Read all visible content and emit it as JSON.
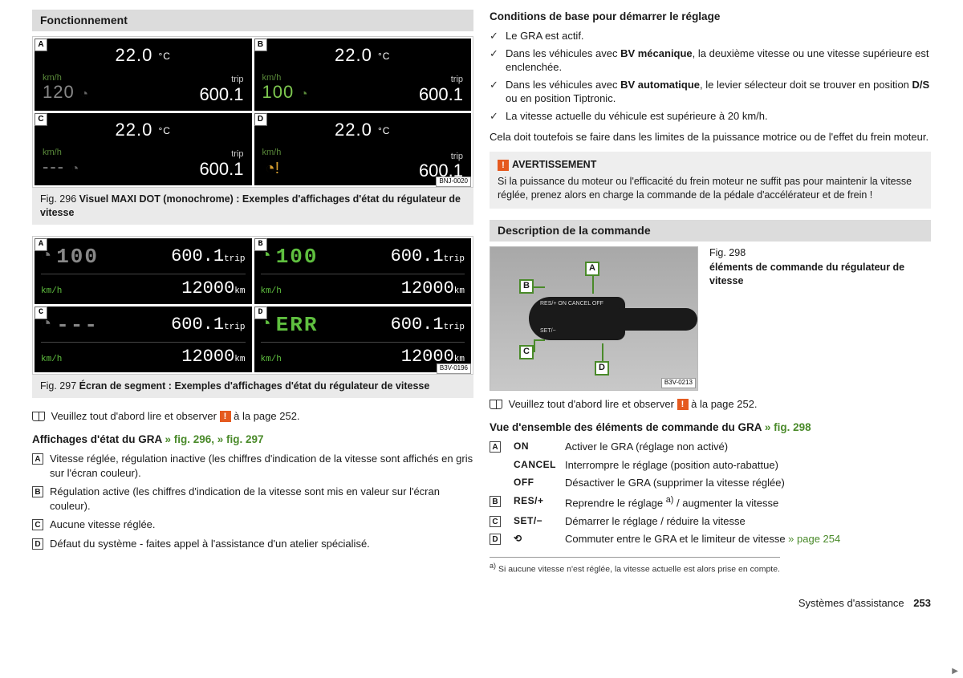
{
  "colors": {
    "green": "#4a8a2a",
    "lcdGreen": "#7ec850",
    "warnOrange": "#e55a1f",
    "panelGrey": "#dcdcdc",
    "captionGrey": "#eaeaea"
  },
  "left": {
    "header": "Fonctionnement",
    "fig296": {
      "imgId": "BNJ-0020",
      "caption_num": "Fig. 296",
      "caption_bold": "Visuel MAXI DOT (monochrome) : Exemples d'affichages d'état du régulateur de vitesse",
      "cells": {
        "A": {
          "temp": "22.0",
          "tempUnit": "°C",
          "kmh": "km/h",
          "speed": "120",
          "speedStyle": "grey",
          "icon": "◔",
          "iconStyle": "grey",
          "tripLbl": "trip",
          "trip": "600.1"
        },
        "B": {
          "temp": "22.0",
          "tempUnit": "°C",
          "kmh": "km/h",
          "speed": "100",
          "speedStyle": "green",
          "icon": "◔",
          "iconStyle": "green",
          "tripLbl": "trip",
          "trip": "600.1"
        },
        "C": {
          "temp": "22.0",
          "tempUnit": "°C",
          "kmh": "km/h",
          "speed": "---",
          "speedStyle": "dash",
          "icon": "◔",
          "iconStyle": "grey",
          "tripLbl": "trip",
          "trip": "600.1"
        },
        "D": {
          "temp": "22.0",
          "tempUnit": "°C",
          "kmh": "km/h",
          "speed": "",
          "speedStyle": "",
          "icon": "◔!",
          "iconStyle": "warn",
          "tripLbl": "trip",
          "trip": "600.1"
        }
      }
    },
    "fig297": {
      "imgId": "B3V-0196",
      "caption_num": "Fig. 297",
      "caption_bold": "Écran de segment : Exemples d'affichages d'état du régulateur de vitesse",
      "cells": {
        "A": {
          "icon": "◔",
          "iconStyle": "grey",
          "speed": "100",
          "speedStyle": "grey",
          "trip": "600.1",
          "tripU": "trip",
          "kmh": "km/h",
          "odo": "12000",
          "odoU": "km"
        },
        "B": {
          "icon": "◔",
          "iconStyle": "green",
          "speed": "100",
          "speedStyle": "green",
          "trip": "600.1",
          "tripU": "trip",
          "kmh": "km/h",
          "odo": "12000",
          "odoU": "km"
        },
        "C": {
          "icon": "◔",
          "iconStyle": "grey",
          "speed": "---",
          "speedStyle": "grey",
          "trip": "600.1",
          "tripU": "trip",
          "kmh": "km/h",
          "odo": "12000",
          "odoU": "km"
        },
        "D": {
          "icon": "◔",
          "iconStyle": "green",
          "speed": "ERR",
          "speedStyle": "err",
          "trip": "600.1",
          "tripU": "trip",
          "kmh": "km/h",
          "odo": "12000",
          "odoU": "km"
        }
      }
    },
    "readFirst": {
      "pre": "Veuillez tout d'abord lire et observer ",
      "post": " à la page 252."
    },
    "statesHead": {
      "txt": "Affichages d'état du GRA",
      "link1": " » fig. 296",
      "link2": ", » fig. 297"
    },
    "states": {
      "A": "Vitesse réglée, régulation inactive (les chiffres d'indication de la vitesse sont affichés en gris sur l'écran couleur).",
      "B": "Régulation active (les chiffres d'indication de la vitesse sont mis en valeur sur l'écran couleur).",
      "C": "Aucune vitesse réglée.",
      "D": "Défaut du système - faites appel à l'assistance d'un atelier spécialisé."
    }
  },
  "right": {
    "condHead": "Conditions de base pour démarrer le réglage",
    "conds": [
      "Le GRA est actif.",
      "Dans les véhicules avec <b>BV mécanique</b>, la deuxième vitesse ou une vitesse supérieure est enclenchée.",
      "Dans les véhicules avec <b>BV automatique</b>, le levier sélecteur doit se trouver en position <b>D/S</b> ou en position Tiptronic.",
      "La vitesse actuelle du véhicule est supérieure à 20 km/h."
    ],
    "condNote": "Cela doit toutefois se faire dans les limites de la puissance motrice ou de l'effet du frein moteur.",
    "warning": {
      "title": "AVERTISSEMENT",
      "body": "Si la puissance du moteur ou l'efficacité du frein moteur ne suffit pas pour maintenir la vitesse réglée, prenez alors en charge la commande de la pédale d'accélérateur et de frein !"
    },
    "descHead": "Description de la commande",
    "fig298": {
      "num": "Fig. 298",
      "bold": "éléments de commande du régulateur de vitesse",
      "imgId": "B3V-0213",
      "labels": {
        "A": "A",
        "B": "B",
        "C": "C",
        "D": "D"
      },
      "lever": {
        "top": "RES/+   ON CANCEL  OFF",
        "bot": "SET/−"
      }
    },
    "readFirst": {
      "pre": "Veuillez tout d'abord lire et observer ",
      "post": " à la page 252."
    },
    "cmdHead": {
      "txt": "Vue d'ensemble des éléments de commande du GRA",
      "link": " » fig. 298"
    },
    "cmds": [
      {
        "box": "A",
        "key": "ON",
        "txt": "Activer le GRA (réglage non activé)"
      },
      {
        "box": "",
        "key": "CANCEL",
        "txt": "Interrompre le réglage (position auto-rabattue)"
      },
      {
        "box": "",
        "key": "OFF",
        "txt": "Désactiver le GRA (supprimer la vitesse réglée)"
      },
      {
        "box": "B",
        "key": "RES/+",
        "txt": "Reprendre le réglage <sup>a)</sup> / augmenter la vitesse"
      },
      {
        "box": "C",
        "key": "SET/−",
        "txt": "Démarrer le réglage / réduire la vitesse"
      },
      {
        "box": "D",
        "key": "⟲",
        "txt": "Commuter entre le GRA et le limiteur de vitesse",
        "link": " » page 254"
      }
    ],
    "footnote": {
      "mark": "a)",
      "txt": "Si aucune vitesse n'est réglée, la vitesse actuelle est alors prise en compte."
    }
  },
  "footer": {
    "section": "Systèmes d'assistance",
    "page": "253"
  }
}
